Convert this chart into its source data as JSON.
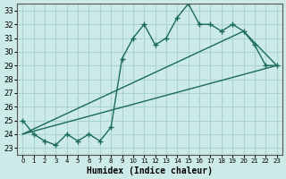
{
  "title": "",
  "xlabel": "Humidex (Indice chaleur)",
  "ylabel": "",
  "bg_color": "#cceae7",
  "grid_color": "#aad4d0",
  "line_color": "#1a6b5a",
  "xlim": [
    -0.5,
    23.5
  ],
  "ylim": [
    22.5,
    33.5
  ],
  "xticks": [
    0,
    1,
    2,
    3,
    4,
    5,
    6,
    7,
    8,
    9,
    10,
    11,
    12,
    13,
    14,
    15,
    16,
    17,
    18,
    19,
    20,
    21,
    22,
    23
  ],
  "yticks": [
    23,
    24,
    25,
    26,
    27,
    28,
    29,
    30,
    31,
    32,
    33
  ],
  "line1_x": [
    0,
    1,
    2,
    3,
    4,
    5,
    6,
    7,
    8,
    9,
    10,
    11,
    12,
    13,
    14,
    15,
    16,
    17,
    18,
    19,
    20,
    21,
    22,
    23
  ],
  "line1_y": [
    25,
    24,
    23.5,
    23.2,
    24,
    23.5,
    24,
    23.5,
    24.5,
    29.5,
    31,
    32,
    30.5,
    31,
    32.5,
    33.5,
    32,
    32,
    31.5,
    32,
    31.5,
    30.5,
    29,
    29
  ],
  "line2_x": [
    0,
    23
  ],
  "line2_y": [
    24,
    29
  ],
  "line3_x": [
    0,
    20,
    23
  ],
  "line3_y": [
    24,
    31.5,
    29
  ]
}
